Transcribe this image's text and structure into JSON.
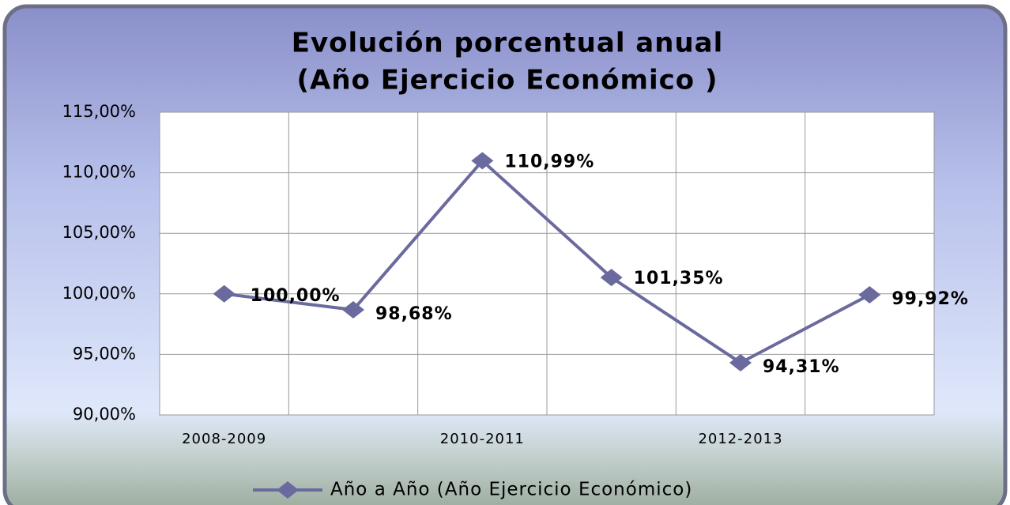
{
  "chart_data": {
    "type": "line",
    "title": [
      "Evolución porcentual anual",
      "(Año Ejercicio Económico )"
    ],
    "categories": [
      "2008-2009",
      null,
      "2010-2011",
      null,
      "2012-2013",
      null
    ],
    "series": [
      {
        "name": "Año a Año (Año Ejercicio Económico)",
        "color": "#6a6a9e",
        "values": [
          100.0,
          98.68,
          110.99,
          101.35,
          94.31,
          99.92
        ],
        "value_labels": [
          "100,00%",
          "98,68%",
          "110,99%",
          "101,35%",
          "94,31%",
          "99,92%"
        ]
      }
    ],
    "ylim": [
      90,
      115
    ],
    "yticks": [
      {
        "value": 90,
        "label": "90,00%"
      },
      {
        "value": 95,
        "label": "95,00%"
      },
      {
        "value": 100,
        "label": "100,00%"
      },
      {
        "value": 105,
        "label": "105,00%"
      },
      {
        "value": 110,
        "label": "110,00%"
      },
      {
        "value": 115,
        "label": "115,00%"
      }
    ],
    "grid": true,
    "legend": "bottom"
  }
}
